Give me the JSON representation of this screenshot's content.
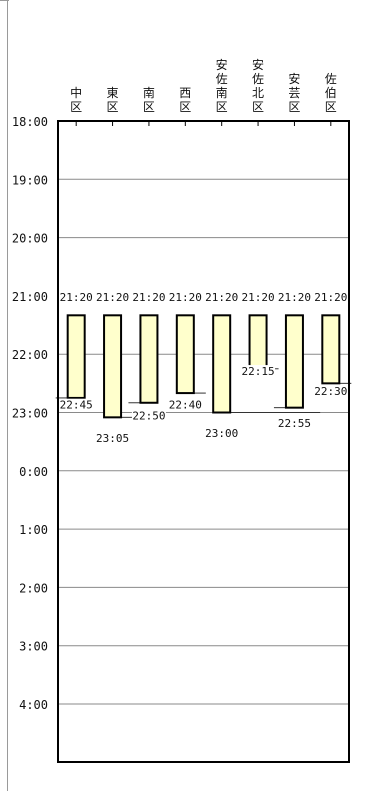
{
  "chart_data": {
    "type": "bar",
    "categories": [
      [
        "中",
        "区"
      ],
      [
        "東",
        "区"
      ],
      [
        "南",
        "区"
      ],
      [
        "西",
        "区"
      ],
      [
        "安",
        "佐",
        "南",
        "区"
      ],
      [
        "安",
        "佐",
        "北",
        "区"
      ],
      [
        "安",
        "芸",
        "区"
      ],
      [
        "佐",
        "伯",
        "区"
      ]
    ],
    "y_ticks": [
      "18:00",
      "19:00",
      "20:00",
      "21:00",
      "22:00",
      "23:00",
      "0:00",
      "1:00",
      "2:00",
      "3:00",
      "4:00"
    ],
    "ylim_hours": [
      18,
      29
    ],
    "series": [
      {
        "start_labels": [
          "21:20",
          "21:20",
          "21:20",
          "21:20",
          "21:20",
          "21:20",
          "21:20",
          "21:20"
        ],
        "end_labels": [
          "22:45",
          "23:05",
          "22:50",
          "22:40",
          "23:00",
          "22:15",
          "22:55",
          "22:30"
        ],
        "start_hours": [
          21.333,
          21.333,
          21.333,
          21.333,
          21.333,
          21.333,
          21.333,
          21.333
        ],
        "end_hours": [
          22.75,
          23.083,
          22.833,
          22.667,
          23.0,
          22.25,
          22.917,
          22.5
        ]
      }
    ],
    "bar_color": "#ffffcc",
    "grid": true,
    "title": "",
    "xlabel": "",
    "ylabel": ""
  }
}
